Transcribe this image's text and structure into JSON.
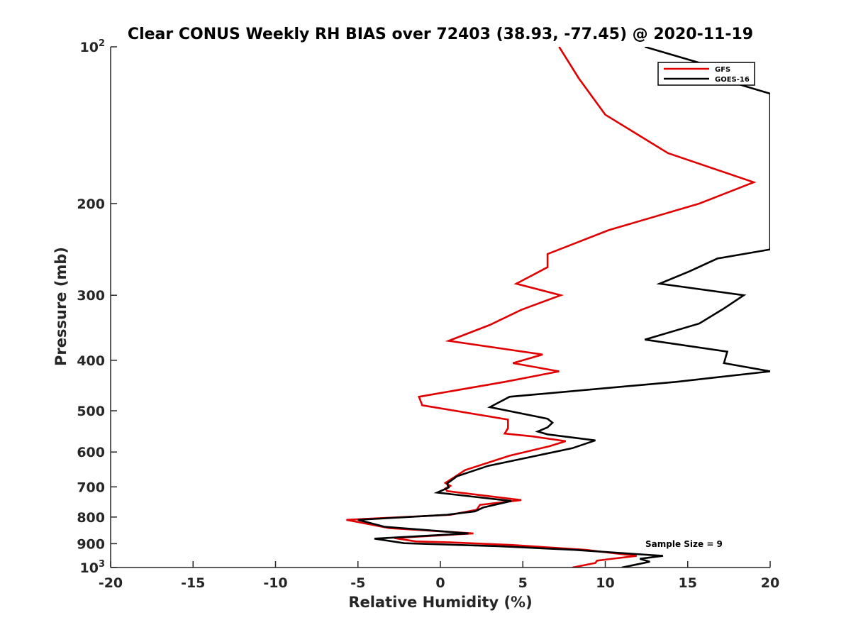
{
  "chart_data": {
    "type": "line",
    "title": "Clear CONUS Weekly RH BIAS over 72403 (38.93, -77.45) @ 2020-11-19",
    "xlabel": "Relative Humidity (%)",
    "ylabel": "Pressure (mb)",
    "xlim": [
      -20,
      20
    ],
    "ylim": [
      100,
      1000
    ],
    "y_scale": "log",
    "y_reversed": true,
    "grid": false,
    "legend_position": "top-right",
    "x_ticks": [
      "-20",
      "-15",
      "-10",
      "-5",
      "0",
      "5",
      "10",
      "15",
      "20"
    ],
    "y_ticks": [
      {
        "value": 100,
        "base": "10",
        "exp": "2"
      },
      {
        "value": 200,
        "label": "200"
      },
      {
        "value": 300,
        "label": "300"
      },
      {
        "value": 400,
        "label": "400"
      },
      {
        "value": 500,
        "label": "500"
      },
      {
        "value": 600,
        "label": "600"
      },
      {
        "value": 700,
        "label": "700"
      },
      {
        "value": 800,
        "label": "800"
      },
      {
        "value": 900,
        "label": "900"
      },
      {
        "value": 1000,
        "base": "10",
        "exp": "3"
      }
    ],
    "annotation": "Sample Size = 9",
    "series": [
      {
        "name": "GFS",
        "color": "#e00000",
        "points": [
          [
            7.2,
            100
          ],
          [
            8.4,
            115
          ],
          [
            10.0,
            135
          ],
          [
            13.8,
            160
          ],
          [
            19.0,
            182
          ],
          [
            15.7,
            200
          ],
          [
            10.2,
            225
          ],
          [
            6.5,
            250
          ],
          [
            6.5,
            265
          ],
          [
            4.6,
            285
          ],
          [
            7.3,
            300
          ],
          [
            4.9,
            320
          ],
          [
            3.0,
            342
          ],
          [
            0.5,
            367
          ],
          [
            6.2,
            390
          ],
          [
            4.4,
            405
          ],
          [
            7.2,
            420
          ],
          [
            3.9,
            440
          ],
          [
            -1.3,
            470
          ],
          [
            -1.1,
            488
          ],
          [
            4.1,
            520
          ],
          [
            4.1,
            540
          ],
          [
            3.9,
            553
          ],
          [
            5.6,
            560
          ],
          [
            7.6,
            572
          ],
          [
            6.6,
            585
          ],
          [
            4.2,
            610
          ],
          [
            1.5,
            650
          ],
          [
            0.3,
            688
          ],
          [
            0.6,
            697
          ],
          [
            0.3,
            705
          ],
          [
            0.4,
            713
          ],
          [
            4.9,
            742
          ],
          [
            2.4,
            758
          ],
          [
            2.2,
            775
          ],
          [
            0.6,
            792
          ],
          [
            -5.7,
            810
          ],
          [
            -3.1,
            840
          ],
          [
            2.0,
            860
          ],
          [
            -2.8,
            878
          ],
          [
            -1.5,
            891
          ],
          [
            0.6,
            895
          ],
          [
            4.3,
            905
          ],
          [
            8.8,
            925
          ],
          [
            11.9,
            950
          ],
          [
            10.3,
            963
          ],
          [
            9.5,
            970
          ],
          [
            9.4,
            980
          ],
          [
            8.0,
            1000
          ]
        ]
      },
      {
        "name": "GOES-16",
        "color": "#000000",
        "points": [
          [
            12.4,
            100
          ],
          [
            16.0,
            108
          ],
          [
            16.5,
            114
          ],
          [
            20.0,
            123
          ],
          [
            20.0,
            245
          ],
          [
            16.8,
            255
          ],
          [
            15.1,
            270
          ],
          [
            13.3,
            285
          ],
          [
            18.4,
            300
          ],
          [
            17.2,
            318
          ],
          [
            15.7,
            340
          ],
          [
            12.4,
            365
          ],
          [
            17.4,
            385
          ],
          [
            17.2,
            405
          ],
          [
            20.0,
            420
          ],
          [
            14.3,
            440
          ],
          [
            4.2,
            470
          ],
          [
            3.0,
            492
          ],
          [
            6.5,
            518
          ],
          [
            6.8,
            527
          ],
          [
            6.5,
            538
          ],
          [
            5.9,
            548
          ],
          [
            6.5,
            555
          ],
          [
            9.4,
            570
          ],
          [
            8.0,
            590
          ],
          [
            2.9,
            638
          ],
          [
            1.0,
            668
          ],
          [
            0.4,
            690
          ],
          [
            0.5,
            702
          ],
          [
            -0.2,
            718
          ],
          [
            4.3,
            745
          ],
          [
            2.6,
            767
          ],
          [
            2.1,
            780
          ],
          [
            0.4,
            792
          ],
          [
            -5.0,
            810
          ],
          [
            -3.4,
            835
          ],
          [
            1.7,
            860
          ],
          [
            -4.0,
            880
          ],
          [
            -2.2,
            898
          ],
          [
            3.5,
            910
          ],
          [
            8.1,
            925
          ],
          [
            13.5,
            950
          ],
          [
            12.1,
            962
          ],
          [
            12.7,
            975
          ],
          [
            11.0,
            1000
          ]
        ]
      }
    ]
  }
}
